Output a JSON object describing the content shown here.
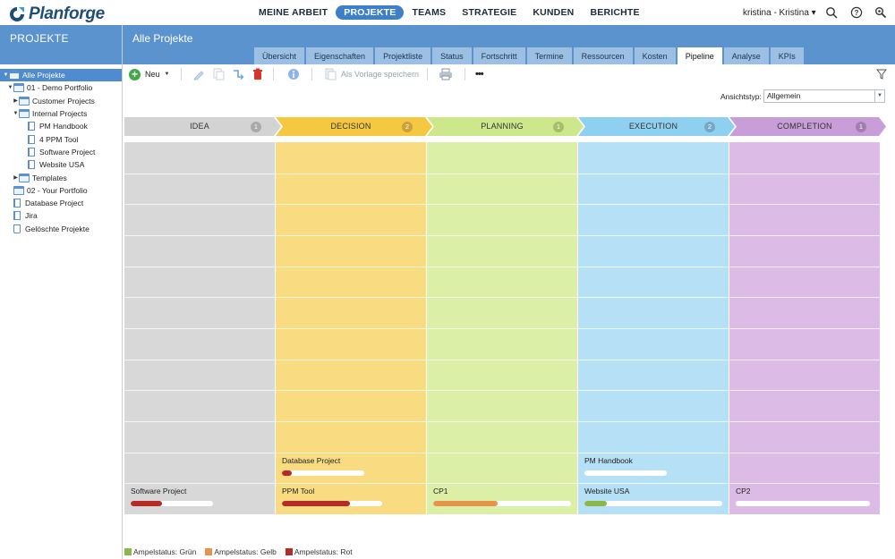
{
  "app": {
    "logo_text": "Planforge"
  },
  "nav": {
    "items": [
      {
        "label": "MEINE ARBEIT",
        "active": false
      },
      {
        "label": "PROJEKTE",
        "active": true
      },
      {
        "label": "TEAMS",
        "active": false
      },
      {
        "label": "STRATEGIE",
        "active": false
      },
      {
        "label": "KUNDEN",
        "active": false
      },
      {
        "label": "BERICHTE",
        "active": false
      }
    ],
    "user": "kristina - Kristina ▾"
  },
  "left": {
    "title": "PROJEKTE",
    "tree": [
      {
        "label": "Alle Projekte",
        "level": 0,
        "twisty": "▼",
        "icon": "folder",
        "selected": true
      },
      {
        "label": "01 - Demo Portfolio",
        "level": 1,
        "twisty": "▼",
        "icon": "folder"
      },
      {
        "label": "Customer Projects",
        "level": 2,
        "twisty": "▶",
        "icon": "folder"
      },
      {
        "label": "Internal Projects",
        "level": 2,
        "twisty": "▼",
        "icon": "folder"
      },
      {
        "label": "PM Handbook",
        "level": 3,
        "twisty": "",
        "icon": "doc"
      },
      {
        "label": "4 PPM Tool",
        "level": 3,
        "twisty": "",
        "icon": "doc"
      },
      {
        "label": "Software Project",
        "level": 3,
        "twisty": "",
        "icon": "doc"
      },
      {
        "label": "Website USA",
        "level": 3,
        "twisty": "",
        "icon": "doc"
      },
      {
        "label": "Templates",
        "level": 2,
        "twisty": "▶",
        "icon": "folder"
      },
      {
        "label": "02 - Your Portfolio",
        "level": 1,
        "twisty": "",
        "icon": "folder"
      },
      {
        "label": "Database Project",
        "level": 1,
        "twisty": "",
        "icon": "doc"
      },
      {
        "label": "Jira",
        "level": 1,
        "twisty": "",
        "icon": "doc"
      },
      {
        "label": "Gelöschte Projekte",
        "level": 1,
        "twisty": "",
        "icon": "trash"
      }
    ]
  },
  "header": {
    "title": "Alle Projekte",
    "tabs": [
      {
        "label": "Übersicht",
        "active": false
      },
      {
        "label": "Eigenschaften",
        "active": false
      },
      {
        "label": "Projektliste",
        "active": false
      },
      {
        "label": "Status",
        "active": false
      },
      {
        "label": "Fortschritt",
        "active": false
      },
      {
        "label": "Termine",
        "active": false
      },
      {
        "label": "Ressourcen",
        "active": false
      },
      {
        "label": "Kosten",
        "active": false
      },
      {
        "label": "Pipeline",
        "active": true
      },
      {
        "label": "Analyse",
        "active": false
      },
      {
        "label": "KPIs",
        "active": false
      }
    ]
  },
  "toolbar": {
    "new_label": "Neu",
    "template_label": "Als Vorlage speichern",
    "more_label": "•••",
    "view_type_label": "Ansichtstyp:",
    "view_type_value": "Allgemein"
  },
  "colors": {
    "green": "#8bb84a",
    "yellow": "#e8934a",
    "red": "#b52b26"
  },
  "pipeline": {
    "stages": [
      {
        "name": "IDEA",
        "count": "1",
        "header_color": "#d3d3d3",
        "body_color": "#d8d8d8",
        "badge_color": "#a9a9a9",
        "cards": [
          {
            "name": "Software Project",
            "slot": 0,
            "status": "red",
            "progress": 0.38
          }
        ]
      },
      {
        "name": "DECISION",
        "count": "2",
        "header_color": "#f5c842",
        "body_color": "#f9dc81",
        "badge_color": "#c9a23a",
        "cards": [
          {
            "name": "PPM Tool",
            "slot": 0,
            "status": "red",
            "progress": 0.68
          },
          {
            "name": "Database Project",
            "slot": 1,
            "status": "red",
            "progress": 0.12
          }
        ]
      },
      {
        "name": "PLANNING",
        "count": "1",
        "header_color": "#cde78b",
        "body_color": "#dcefa6",
        "badge_color": "#a8bd6a",
        "cards": [
          {
            "name": "CP1",
            "slot": 0,
            "status": "yellow",
            "progress": 0.47
          }
        ]
      },
      {
        "name": "EXECUTION",
        "count": "2",
        "header_color": "#8fd0f0",
        "body_color": "#b5e0f6",
        "badge_color": "#74a9c4",
        "cards": [
          {
            "name": "Website USA",
            "slot": 0,
            "status": "green",
            "progress": 0.16
          },
          {
            "name": "PM Handbook",
            "slot": 1,
            "status": "green",
            "progress": 0
          }
        ]
      },
      {
        "name": "COMPLETION",
        "count": "1",
        "header_color": "#c79ed8",
        "body_color": "#dcbce6",
        "badge_color": "#a07fae",
        "cards": [
          {
            "name": "CP2",
            "slot": 0,
            "status": "green",
            "progress": 0
          }
        ]
      }
    ]
  },
  "legend": [
    {
      "label": "Ampelstatus: Grün",
      "color": "#8bb84a"
    },
    {
      "label": "Ampelstatus: Gelb",
      "color": "#e8934a"
    },
    {
      "label": "Ampelstatus: Rot",
      "color": "#b52b26"
    }
  ]
}
